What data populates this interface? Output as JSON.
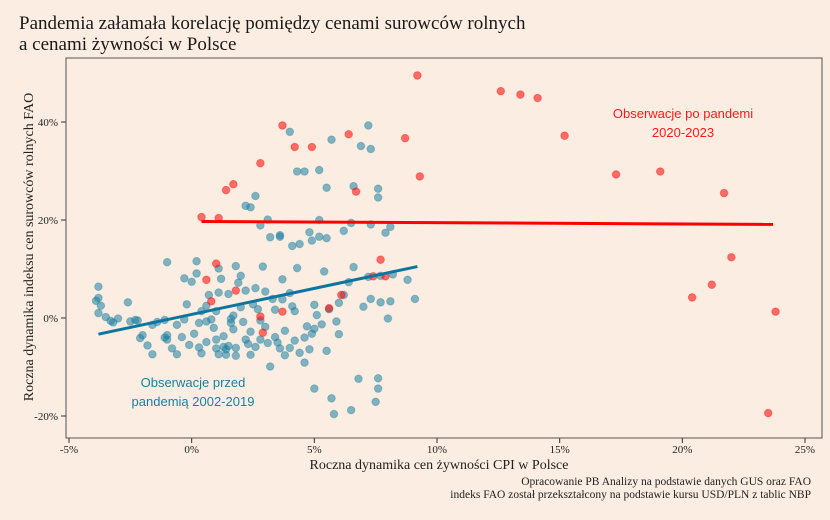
{
  "header": {
    "title_line1": "Pandemia załamała korelację pomiędzy cenami surowców rolnych",
    "title_line2": "a cenami żywności w Polsce"
  },
  "footer": {
    "source_line1": "Opracowanie PB Analizy na podstawie danych GUS oraz FAO",
    "source_line2": "indeks FAO został przekształcony na podstawie kursu USD/PLN z tablic NBP"
  },
  "colors": {
    "pre": "#1b7fa3",
    "post": "#ff0000",
    "pre_line": "#0e74a0",
    "background": "#fbede1"
  },
  "chart_data": {
    "type": "scatter",
    "title": "Pandemia załamała korelację pomiędzy cenami surowców rolnych a cenami żywności w Polsce",
    "xlabel": "Roczna dynamika cen żywności CPI w Polsce",
    "ylabel": "Roczna dynamika indeksu cen surowców rolnych FAO",
    "xlim": [
      -5.2,
      25.7
    ],
    "ylim": [
      -23,
      52
    ],
    "x_ticks": [
      -5,
      0,
      5,
      10,
      15,
      20,
      25
    ],
    "x_tick_labels": [
      "-5%",
      "0%",
      "5%",
      "10%",
      "15%",
      "20%",
      "25%"
    ],
    "y_ticks": [
      -20,
      0,
      20,
      40
    ],
    "y_tick_labels": [
      "-20%",
      "0%",
      "20%",
      "40%"
    ],
    "grid": false,
    "annotations": {
      "pre_line1": "Obserwacje przed",
      "pre_line2": "pandemią 2002-2019",
      "post_line1": "Obserwacje po pandemi",
      "post_line2": "2020-2023"
    },
    "series": [
      {
        "name": "Obserwacje przed pandemią 2002-2019",
        "trend": {
          "x": [
            -3.8,
            9.2
          ],
          "y": [
            -3.3,
            10.5
          ]
        },
        "points": [
          [
            -3.9,
            3.5
          ],
          [
            -3.8,
            4.1
          ],
          [
            -3.8,
            6.4
          ],
          [
            -3.7,
            2.5
          ],
          [
            -3.8,
            1.0
          ],
          [
            -3.5,
            0.2
          ],
          [
            -3.3,
            -0.6
          ],
          [
            -3.2,
            -0.9
          ],
          [
            -3.0,
            -0.1
          ],
          [
            -2.6,
            3.2
          ],
          [
            -2.5,
            -0.7
          ],
          [
            -2.3,
            -0.4
          ],
          [
            -2.2,
            -0.5
          ],
          [
            -2.1,
            -4.1
          ],
          [
            -2.0,
            -3.5
          ],
          [
            -1.8,
            -5.6
          ],
          [
            -1.6,
            -7.4
          ],
          [
            -1.6,
            -1.4
          ],
          [
            -1.4,
            -0.8
          ],
          [
            -1.1,
            -0.4
          ],
          [
            -1.0,
            11.4
          ],
          [
            -1.0,
            -3.5
          ],
          [
            -1.1,
            -4.0
          ],
          [
            -1.0,
            -4.4
          ],
          [
            -0.8,
            -6.2
          ],
          [
            -0.6,
            -1.4
          ],
          [
            -0.6,
            -7.4
          ],
          [
            -0.4,
            -3.9
          ],
          [
            -0.3,
            -0.3
          ],
          [
            -0.2,
            2.8
          ],
          [
            -0.3,
            8.1
          ],
          [
            -0.1,
            -5.5
          ],
          [
            0.0,
            7.4
          ],
          [
            0.1,
            -3.2
          ],
          [
            0.2,
            9.1
          ],
          [
            0.2,
            11.6
          ],
          [
            0.3,
            -1.0
          ],
          [
            0.3,
            -6.0
          ],
          [
            0.4,
            -7.2
          ],
          [
            0.4,
            1.4
          ],
          [
            0.6,
            -0.7
          ],
          [
            0.6,
            -4.9
          ],
          [
            0.6,
            2.5
          ],
          [
            0.7,
            4.7
          ],
          [
            0.8,
            -0.3
          ],
          [
            0.9,
            -2.0
          ],
          [
            1.0,
            1.4
          ],
          [
            1.0,
            -4.4
          ],
          [
            1.0,
            -6.2
          ],
          [
            1.1,
            10.1
          ],
          [
            1.1,
            -7.4
          ],
          [
            1.1,
            5.2
          ],
          [
            1.2,
            8.0
          ],
          [
            1.3,
            -3.7
          ],
          [
            1.3,
            -5.9
          ],
          [
            1.4,
            -6.4
          ],
          [
            1.4,
            -7.5
          ],
          [
            1.5,
            -5.7
          ],
          [
            1.5,
            4.9
          ],
          [
            1.6,
            -0.2
          ],
          [
            1.6,
            -1.0
          ],
          [
            1.7,
            0.5
          ],
          [
            1.7,
            -2.3
          ],
          [
            1.8,
            -6.1
          ],
          [
            1.8,
            -7.7
          ],
          [
            1.8,
            10.6
          ],
          [
            1.9,
            7.2
          ],
          [
            2.0,
            8.6
          ],
          [
            2.0,
            2.2
          ],
          [
            2.1,
            -0.8
          ],
          [
            2.2,
            5.6
          ],
          [
            2.2,
            -4.4
          ],
          [
            2.3,
            -5.3
          ],
          [
            2.4,
            -2.8
          ],
          [
            2.4,
            -7.5
          ],
          [
            2.5,
            2.8
          ],
          [
            2.6,
            6.1
          ],
          [
            2.6,
            -5.9
          ],
          [
            2.7,
            1.8
          ],
          [
            2.8,
            -4.4
          ],
          [
            2.8,
            -0.5
          ],
          [
            2.8,
            18.9
          ],
          [
            2.9,
            10.5
          ],
          [
            3.0,
            5.4
          ],
          [
            3.0,
            -1.8
          ],
          [
            3.1,
            -5.1
          ],
          [
            3.2,
            -9.9
          ],
          [
            3.3,
            3.9
          ],
          [
            3.4,
            -3.9
          ],
          [
            3.4,
            1.7
          ],
          [
            3.5,
            -5.0
          ],
          [
            3.6,
            -6.2
          ],
          [
            3.6,
            16.6
          ],
          [
            3.7,
            7.9
          ],
          [
            3.7,
            3.8
          ],
          [
            3.8,
            -2.6
          ],
          [
            3.8,
            -7.6
          ],
          [
            4.0,
            -6.1
          ],
          [
            4.0,
            5.1
          ],
          [
            4.1,
            14.7
          ],
          [
            4.1,
            2.4
          ],
          [
            4.2,
            1.4
          ],
          [
            4.2,
            -4.6
          ],
          [
            4.3,
            10.2
          ],
          [
            4.4,
            -7.1
          ],
          [
            4.4,
            15.1
          ],
          [
            4.6,
            -4.0
          ],
          [
            4.6,
            -9.1
          ],
          [
            4.7,
            -1.7
          ],
          [
            4.8,
            -6.4
          ],
          [
            4.9,
            -3.2
          ],
          [
            5.0,
            -14.4
          ],
          [
            5.0,
            -2.2
          ],
          [
            5.0,
            2.7
          ],
          [
            5.1,
            0.6
          ],
          [
            5.2,
            16.6
          ],
          [
            5.3,
            -1.3
          ],
          [
            5.4,
            9.5
          ],
          [
            5.5,
            -6.7
          ],
          [
            5.6,
            1.8
          ],
          [
            5.7,
            -16.4
          ],
          [
            5.8,
            -19.6
          ],
          [
            5.9,
            -0.7
          ],
          [
            6.0,
            -3.3
          ],
          [
            6.0,
            3.1
          ],
          [
            6.2,
            4.7
          ],
          [
            6.4,
            7.3
          ],
          [
            6.5,
            -18.8
          ],
          [
            6.6,
            10.4
          ],
          [
            6.8,
            -12.4
          ],
          [
            7.0,
            2.3
          ],
          [
            7.2,
            8.4
          ],
          [
            7.3,
            3.9
          ],
          [
            7.5,
            -17.1
          ],
          [
            7.6,
            -14.4
          ],
          [
            7.6,
            -12.3
          ],
          [
            7.7,
            3.2
          ],
          [
            7.7,
            8.6
          ],
          [
            7.9,
            17.4
          ],
          [
            8.0,
            -0.1
          ],
          [
            8.1,
            3.4
          ],
          [
            8.2,
            8.9
          ],
          [
            8.8,
            7.8
          ],
          [
            9.1,
            3.9
          ],
          [
            7.6,
            24.6
          ],
          [
            7.6,
            26.4
          ],
          [
            7.3,
            34.5
          ],
          [
            7.2,
            39.3
          ],
          [
            6.6,
            26.9
          ],
          [
            5.5,
            26.6
          ],
          [
            5.7,
            36.4
          ],
          [
            5.2,
            30.2
          ],
          [
            4.8,
            17.5
          ],
          [
            4.0,
            38.0
          ],
          [
            4.3,
            29.9
          ],
          [
            4.6,
            29.9
          ],
          [
            5.2,
            20.0
          ],
          [
            6.5,
            19.4
          ],
          [
            7.3,
            19.1
          ],
          [
            8.1,
            18.6
          ],
          [
            2.2,
            22.9
          ],
          [
            2.6,
            24.9
          ],
          [
            3.1,
            20.1
          ],
          [
            6.9,
            35.1
          ],
          [
            2.4,
            22.6
          ],
          [
            3.6,
            16.9
          ],
          [
            4.9,
            15.8
          ],
          [
            5.5,
            16.3
          ],
          [
            6.2,
            17.8
          ],
          [
            3.2,
            16.5
          ]
        ]
      },
      {
        "name": "Obserwacje po pandemi 2020-2023",
        "trend": {
          "x": [
            0.4,
            23.7
          ],
          "y": [
            19.7,
            19.1
          ]
        },
        "points": [
          [
            0.4,
            20.6
          ],
          [
            1.1,
            20.4
          ],
          [
            1.4,
            26.1
          ],
          [
            1.7,
            27.3
          ],
          [
            2.8,
            31.6
          ],
          [
            3.7,
            39.3
          ],
          [
            4.2,
            34.9
          ],
          [
            4.9,
            34.9
          ],
          [
            6.4,
            37.5
          ],
          [
            6.7,
            25.8
          ],
          [
            8.7,
            36.7
          ],
          [
            9.2,
            49.5
          ],
          [
            9.3,
            28.9
          ],
          [
            12.6,
            46.3
          ],
          [
            13.4,
            45.6
          ],
          [
            14.1,
            44.9
          ],
          [
            15.2,
            37.2
          ],
          [
            17.3,
            29.3
          ],
          [
            19.1,
            29.9
          ],
          [
            21.7,
            25.5
          ],
          [
            22.0,
            12.4
          ],
          [
            21.2,
            6.8
          ],
          [
            20.4,
            4.2
          ],
          [
            23.8,
            1.3
          ],
          [
            23.5,
            -19.4
          ],
          [
            7.7,
            11.9
          ],
          [
            7.4,
            8.5
          ],
          [
            5.6,
            2.0
          ],
          [
            6.1,
            4.7
          ],
          [
            7.9,
            8.5
          ],
          [
            3.7,
            1.3
          ],
          [
            2.8,
            0.3
          ],
          [
            1.8,
            5.6
          ],
          [
            0.8,
            3.4
          ],
          [
            0.6,
            7.8
          ],
          [
            1.0,
            11.1
          ],
          [
            2.9,
            -3.0
          ]
        ]
      }
    ]
  }
}
